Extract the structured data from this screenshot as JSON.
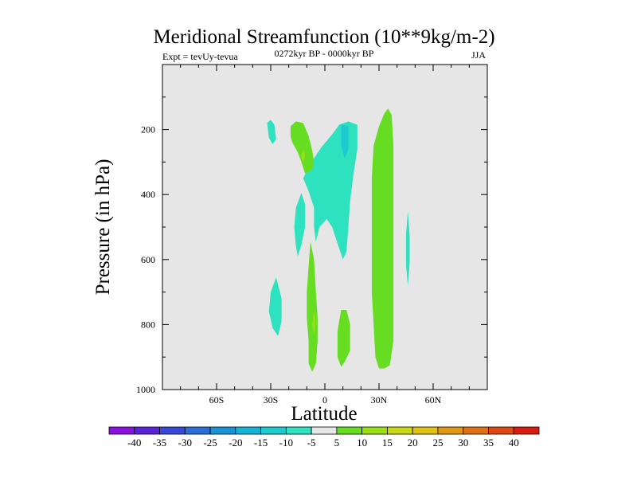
{
  "chart_data": {
    "type": "contour",
    "title": "Meridional Streamfunction (10**9kg/m-2)",
    "subtitle_left": "Expt = tevUy-tevua",
    "subtitle_center": "0272kyr BP - 0000kyr BP",
    "subtitle_right": "JJA",
    "xlabel": "Latitude",
    "ylabel": "Pressure (in hPa)",
    "xlim": [
      -90,
      90
    ],
    "ylim": [
      1000,
      0
    ],
    "y_reversed": true,
    "x_ticks": [
      {
        "value": -60,
        "label": "60S"
      },
      {
        "value": -30,
        "label": "30S"
      },
      {
        "value": 0,
        "label": "0"
      },
      {
        "value": 30,
        "label": "30N"
      },
      {
        "value": 60,
        "label": "60N"
      }
    ],
    "y_ticks": [
      {
        "value": 200,
        "label": "200"
      },
      {
        "value": 400,
        "label": "400"
      },
      {
        "value": 600,
        "label": "600"
      },
      {
        "value": 800,
        "label": "800"
      },
      {
        "value": 1000,
        "label": "1000"
      }
    ],
    "background_color": "#e6e6e6",
    "colorbar": {
      "labels": [
        "-40",
        "-35",
        "-30",
        "-25",
        "-20",
        "-15",
        "-10",
        "-5",
        "5",
        "10",
        "15",
        "20",
        "25",
        "30",
        "35",
        "40"
      ],
      "colors": [
        "#8a10e0",
        "#5a22d8",
        "#3a48d8",
        "#2a6ed8",
        "#1a92d6",
        "#16b2d8",
        "#1ccad0",
        "#2ee2c0",
        "#e6e6e6",
        "#66dd22",
        "#9ade14",
        "#c8d812",
        "#e0c012",
        "#e09814",
        "#e07014",
        "#e04814",
        "#d81e12"
      ]
    },
    "regions": [
      {
        "level": "-10 to -5",
        "color": "#2ee2c0",
        "points": [
          [
            -30,
            170
          ],
          [
            -28,
            185
          ],
          [
            -27,
            230
          ],
          [
            -29,
            245
          ],
          [
            -31,
            225
          ],
          [
            -32,
            180
          ]
        ]
      },
      {
        "level": "-10 to -5",
        "color": "#2ee2c0",
        "points": [
          [
            -13,
            395
          ],
          [
            -11,
            430
          ],
          [
            -11,
            500
          ],
          [
            -13,
            555
          ],
          [
            -15,
            590
          ],
          [
            -16,
            560
          ],
          [
            -17,
            500
          ],
          [
            -16,
            440
          ]
        ]
      },
      {
        "level": "-10 to -5",
        "color": "#2ee2c0",
        "points": [
          [
            -27,
            655
          ],
          [
            -24,
            720
          ],
          [
            -24,
            790
          ],
          [
            -26,
            835
          ],
          [
            -29,
            810
          ],
          [
            -31,
            760
          ],
          [
            -30,
            700
          ]
        ]
      },
      {
        "level": "-10 to -5",
        "color": "#2ee2c0",
        "points": [
          [
            -12,
            350
          ],
          [
            -8,
            305
          ],
          [
            -2,
            255
          ],
          [
            4,
            215
          ],
          [
            8,
            185
          ],
          [
            13,
            175
          ],
          [
            18,
            185
          ],
          [
            18,
            260
          ],
          [
            16,
            330
          ],
          [
            14,
            420
          ],
          [
            13,
            500
          ],
          [
            12,
            575
          ],
          [
            10,
            600
          ],
          [
            7,
            550
          ],
          [
            4,
            500
          ],
          [
            1,
            475
          ],
          [
            -3,
            500
          ],
          [
            -5,
            545
          ],
          [
            -6,
            500
          ],
          [
            -6,
            440
          ],
          [
            -9,
            390
          ]
        ]
      },
      {
        "level": "-15 to -10",
        "color": "#1ccad0",
        "points": [
          [
            9,
            185
          ],
          [
            13,
            190
          ],
          [
            13,
            260
          ],
          [
            11,
            290
          ],
          [
            9,
            250
          ]
        ]
      },
      {
        "level": "5 to 10",
        "color": "#66dd22",
        "points": [
          [
            -19,
            190
          ],
          [
            -16,
            175
          ],
          [
            -12,
            180
          ],
          [
            -9,
            220
          ],
          [
            -7,
            265
          ],
          [
            -6,
            300
          ],
          [
            -7,
            325
          ],
          [
            -11,
            335
          ],
          [
            -13,
            300
          ],
          [
            -15,
            270
          ],
          [
            -18,
            240
          ],
          [
            -19,
            220
          ]
        ]
      },
      {
        "level": "5 to 10",
        "color": "#66dd22",
        "points": [
          [
            -8,
            545
          ],
          [
            -6,
            600
          ],
          [
            -5,
            700
          ],
          [
            -4,
            780
          ],
          [
            -4,
            850
          ],
          [
            -5,
            920
          ],
          [
            -7,
            945
          ],
          [
            -9,
            920
          ],
          [
            -9,
            850
          ],
          [
            -10,
            780
          ],
          [
            -10,
            700
          ],
          [
            -9,
            620
          ]
        ]
      },
      {
        "level": "5 to 10",
        "color": "#66dd22",
        "points": [
          [
            9,
            755
          ],
          [
            12,
            755
          ],
          [
            14,
            800
          ],
          [
            14,
            880
          ],
          [
            11,
            915
          ],
          [
            9,
            930
          ],
          [
            7,
            900
          ],
          [
            7,
            820
          ]
        ]
      },
      {
        "level": "5 to 10",
        "color": "#66dd22",
        "points": [
          [
            35,
            135
          ],
          [
            37,
            155
          ],
          [
            38,
            250
          ],
          [
            38,
            400
          ],
          [
            38,
            550
          ],
          [
            38,
            700
          ],
          [
            38,
            850
          ],
          [
            36,
            925
          ],
          [
            33,
            935
          ],
          [
            30,
            935
          ],
          [
            28,
            900
          ],
          [
            27,
            800
          ],
          [
            26,
            700
          ],
          [
            26,
            580
          ],
          [
            26,
            450
          ],
          [
            26,
            350
          ],
          [
            27,
            250
          ],
          [
            30,
            190
          ],
          [
            33,
            150
          ]
        ]
      },
      {
        "level": "-10 to -5",
        "color": "#2ee2c0",
        "points": [
          [
            46,
            450
          ],
          [
            47,
            530
          ],
          [
            47,
            610
          ],
          [
            46,
            680
          ],
          [
            45,
            620
          ],
          [
            45,
            520
          ]
        ]
      },
      {
        "level": "10 to 15",
        "color": "#9ade14",
        "points": [
          [
            -12,
            260
          ],
          [
            -11,
            280
          ],
          [
            -12,
            300
          ],
          [
            -13,
            285
          ]
        ]
      },
      {
        "level": "10 to 15",
        "color": "#9ade14",
        "points": [
          [
            -6,
            760
          ],
          [
            -5,
            790
          ],
          [
            -6,
            830
          ],
          [
            -7,
            800
          ]
        ]
      }
    ]
  }
}
